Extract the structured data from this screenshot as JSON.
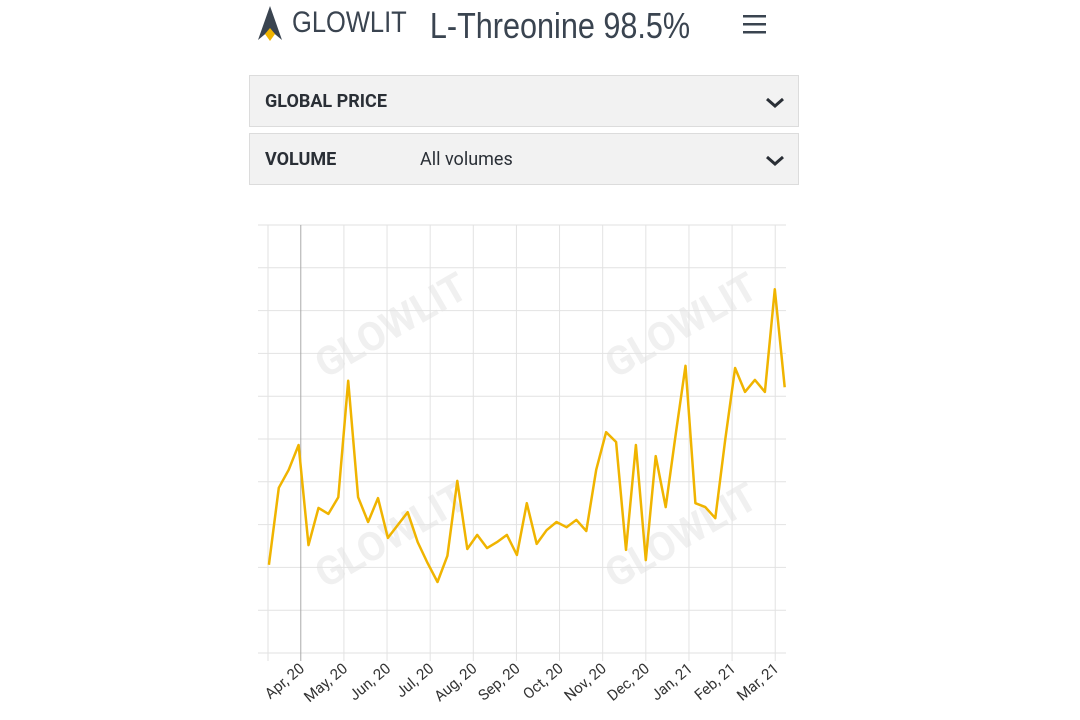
{
  "header": {
    "logo": "GLOWLIT",
    "title": "L-Threonine 98.5%"
  },
  "filters": [
    {
      "label": "GLOBAL PRICE"
    },
    {
      "label": "VOLUME",
      "value": "All volumes"
    }
  ],
  "chart_data": {
    "type": "line",
    "watermark": "GLOWLIT",
    "color": "#f0b400",
    "grid": true,
    "x": [
      -0.74,
      -0.51,
      -0.28,
      -0.05,
      0.18,
      0.41,
      0.64,
      0.87,
      1.1,
      1.33,
      1.56,
      1.79,
      2.02,
      2.25,
      2.48,
      2.71,
      2.94,
      3.17,
      3.4,
      3.63,
      3.86,
      4.09,
      4.32,
      4.55,
      4.78,
      5.01,
      5.24,
      5.47,
      5.7,
      5.93,
      6.16,
      6.39,
      6.62,
      6.85,
      7.08,
      7.31,
      7.54,
      7.77,
      8,
      8.23,
      8.46,
      8.69,
      8.92,
      9.15,
      9.38,
      9.61,
      9.84,
      10.07,
      10.3,
      10.53,
      10.76,
      10.99,
      11.22
    ],
    "values": [
      2.06,
      3.86,
      4.28,
      4.86,
      2.52,
      3.39,
      3.25,
      3.64,
      6.36,
      3.64,
      3.06,
      3.62,
      2.69,
      2.99,
      3.29,
      2.59,
      2.1,
      1.66,
      2.27,
      4.02,
      2.43,
      2.76,
      2.45,
      2.59,
      2.76,
      2.29,
      3.5,
      2.55,
      2.87,
      3.06,
      2.94,
      3.11,
      2.85,
      4.28,
      5.16,
      4.93,
      2.41,
      4.86,
      2.17,
      4.6,
      3.41,
      5.09,
      6.71,
      3.5,
      3.41,
      3.15,
      4.98,
      6.66,
      6.1,
      6.38,
      6.1,
      8.5,
      6.21
    ],
    "xlim": [
      -0.76,
      11.25
    ],
    "ylim": [
      0,
      10
    ],
    "yticks": [
      0,
      1,
      2,
      3,
      4,
      5,
      6,
      7,
      8,
      9,
      10
    ],
    "xticks": [
      {
        "value": 0,
        "label": "Apr, 20"
      },
      {
        "value": 1,
        "label": "May, 20"
      },
      {
        "value": 2,
        "label": "Jun, 20"
      },
      {
        "value": 3,
        "label": "Jul, 20"
      },
      {
        "value": 4,
        "label": "Aug, 20"
      },
      {
        "value": 5,
        "label": "Sep, 20"
      },
      {
        "value": 6,
        "label": "Oct, 20"
      },
      {
        "value": 7,
        "label": "Nov, 20"
      },
      {
        "value": 8,
        "label": "Dec, 20"
      },
      {
        "value": 9,
        "label": "Jan, 21"
      },
      {
        "value": 10,
        "label": "Feb, 21"
      },
      {
        "value": 11,
        "label": "Mar, 21"
      }
    ]
  }
}
